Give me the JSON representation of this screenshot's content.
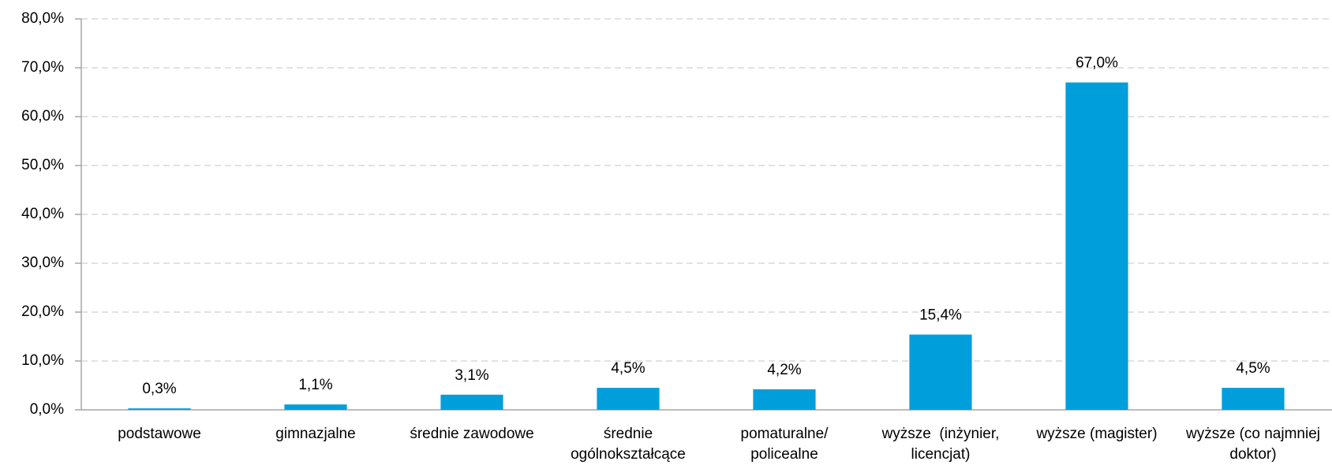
{
  "chart_data": {
    "type": "bar",
    "categories": [
      "podstawowe",
      "gimnazjalne",
      "średnie zawodowe",
      "średnie ogólnokształcące",
      "pomaturalne/ policealne",
      "wyższe  (inżynier, licencjat)",
      "wyższe (magister)",
      "wyższe (co najmniej doktor)"
    ],
    "values": [
      0.3,
      1.1,
      3.1,
      4.5,
      4.2,
      15.4,
      67.0,
      4.5
    ],
    "value_labels": [
      "0,3%",
      "1,1%",
      "3,1%",
      "4,5%",
      "4,2%",
      "15,4%",
      "67,0%",
      "4,5%"
    ],
    "color": "#009fdb",
    "ylim": [
      0,
      80
    ],
    "yticks": [
      {
        "value": 0,
        "label": "0,0%"
      },
      {
        "value": 10,
        "label": "10,0%"
      },
      {
        "value": 20,
        "label": "20,0%"
      },
      {
        "value": 30,
        "label": "30,0%"
      },
      {
        "value": 40,
        "label": "40,0%"
      },
      {
        "value": 50,
        "label": "50,0%"
      },
      {
        "value": 60,
        "label": "60,0%"
      },
      {
        "value": 70,
        "label": "70,0%"
      },
      {
        "value": 80,
        "label": "80,0%"
      }
    ],
    "grid": true
  }
}
